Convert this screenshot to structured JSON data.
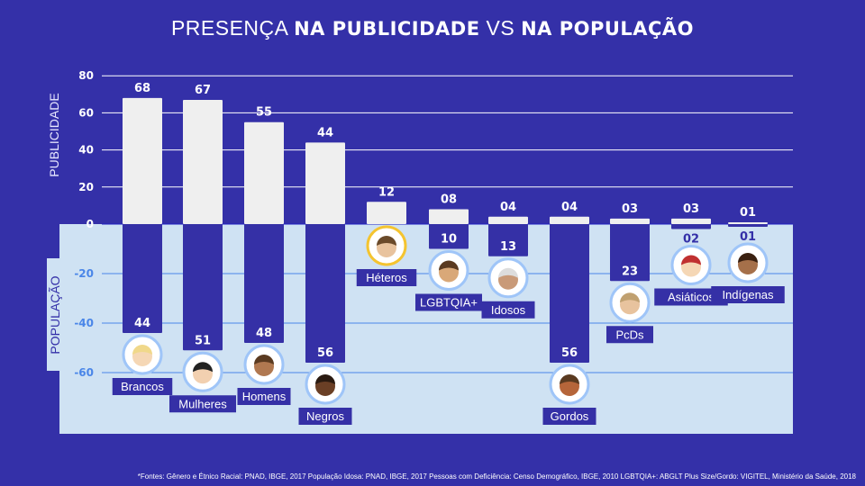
{
  "title": {
    "part1": "PRESENÇA ",
    "part2": "NA PUBLICIDADE",
    "part3": " VS ",
    "part4": "NA POPULAÇÃO"
  },
  "footnote": "*Fontes: Gênero e Étnico Racial: PNAD, IBGE, 2017 População Idosa: PNAD, IBGE, 2017 Pessoas com Deficiência: Censo Demográfico, IBGE, 2010 LGBTQIA+: ABGLT Plus Size/Gordo: VIGITEL, Ministério da Saúde, 2018",
  "colors": {
    "background": "#3430a8",
    "panel": "#cfe2f3",
    "ad_bar": "#efefef",
    "pop_bar": "#3530a6",
    "grid_neg": "#4a86e8"
  },
  "chart_data": {
    "type": "bar",
    "title": "PRESENÇA NA PUBLICIDADE VS NA POPULAÇÃO",
    "ylabel_top": "PUBLICIDADE",
    "ylabel_bottom": "POPULAÇÃO",
    "yticks_top": [
      "80",
      "60",
      "40",
      "20",
      "0"
    ],
    "yticks_bottom": [
      "-20",
      "-40",
      "-60"
    ],
    "ylim": [
      -60,
      80
    ],
    "categories": [
      "Brancos",
      "Mulheres",
      "Homens",
      "Negros",
      "Héteros",
      "LGBTQIA+",
      "Idosos",
      "Gordos",
      "PcDs",
      "Asiáticos",
      "Indígenas"
    ],
    "series": [
      {
        "name": "Publicidade",
        "values": [
          68,
          67,
          55,
          44,
          12,
          8,
          4,
          4,
          3,
          3,
          1
        ],
        "labels": [
          "68",
          "67",
          "55",
          "44",
          "12",
          "08",
          "04",
          "04",
          "03",
          "03",
          "01"
        ]
      },
      {
        "name": "População",
        "values": [
          44,
          51,
          48,
          56,
          null,
          10,
          13,
          56,
          23,
          2,
          1
        ],
        "labels": [
          "44",
          "51",
          "48",
          "56",
          "",
          "10",
          "13",
          "56",
          "23",
          "02",
          "01"
        ]
      }
    ]
  }
}
